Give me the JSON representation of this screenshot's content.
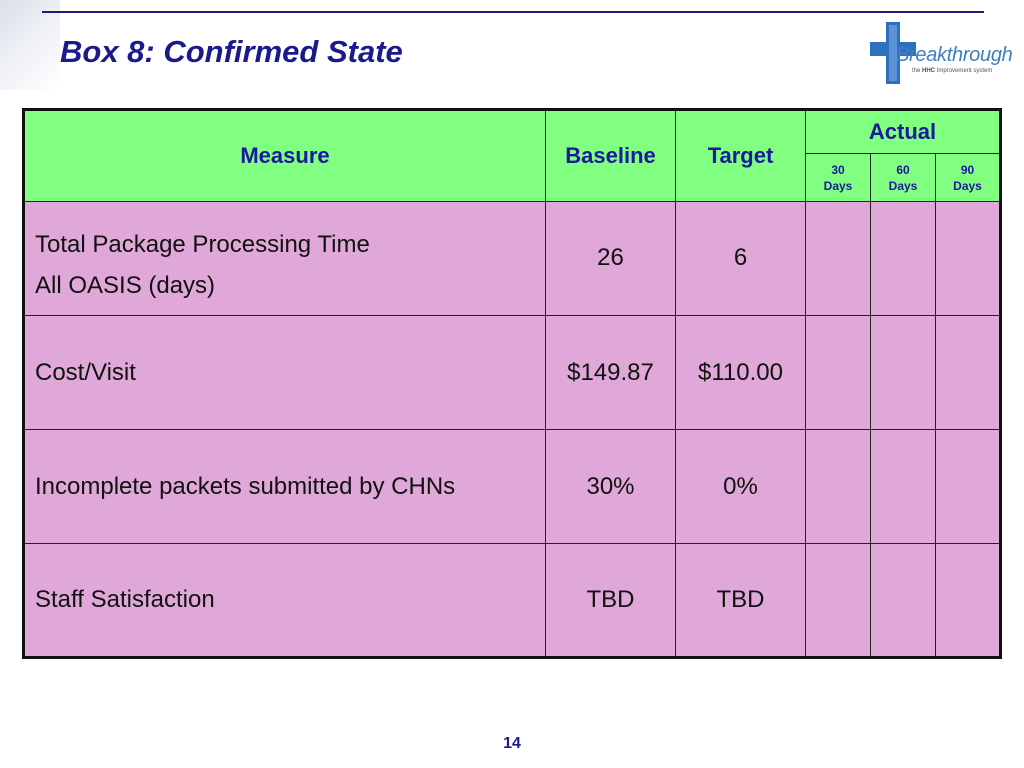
{
  "slide": {
    "title": "Box 8: Confirmed State",
    "page_number": "14"
  },
  "logo": {
    "word": "Breakthrough",
    "tagline_prefix": "the",
    "tagline_brand": "HHC",
    "tagline_suffix": "Improvement system",
    "colors": {
      "cross": "#2f6fc0",
      "word": "#3d7fbf"
    }
  },
  "table": {
    "headers": {
      "measure": "Measure",
      "baseline": "Baseline",
      "target": "Target",
      "actual": "Actual",
      "actual_periods": [
        {
          "number": "30",
          "unit": "Days"
        },
        {
          "number": "60",
          "unit": "Days"
        },
        {
          "number": "90",
          "unit": "Days"
        }
      ]
    },
    "rows": [
      {
        "measure_line1": "Total Package Processing Time",
        "measure_line2": "All OASIS (days)",
        "baseline": "26",
        "target": "6"
      },
      {
        "measure": "Cost/Visit",
        "baseline": "$149.87",
        "target": "$110.00"
      },
      {
        "measure": "Incomplete packets submitted by CHNs",
        "baseline": "30%",
        "target": "0%"
      },
      {
        "measure": "Staff Satisfaction",
        "baseline": "TBD",
        "target": "TBD"
      }
    ],
    "colors": {
      "header_bg": "#80ff80",
      "header_text": "#1a1a9c",
      "body_bg": "#e0a8d8"
    }
  }
}
